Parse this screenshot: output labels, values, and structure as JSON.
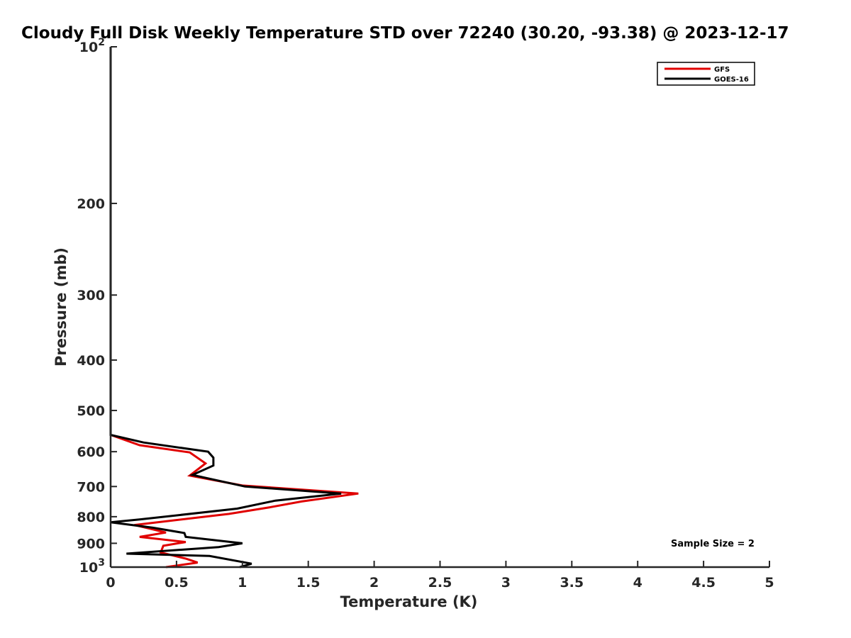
{
  "chart_data": {
    "type": "line",
    "title": "Cloudy Full Disk Weekly Temperature STD over 72240 (30.20, -93.38) @ 2023-12-17",
    "xlabel": "Temperature (K)",
    "ylabel": "Pressure (mb)",
    "xlim": [
      0,
      5
    ],
    "ylim": [
      100,
      1000
    ],
    "y_scale": "log",
    "y_reversed": true,
    "grid": false,
    "legend_position": "top-right",
    "x_ticks": [
      "0",
      "0.5",
      "1",
      "1.5",
      "2",
      "2.5",
      "3",
      "3.5",
      "4",
      "4.5",
      "5"
    ],
    "y_ticks": [
      {
        "value": 100,
        "label": "10",
        "sup": "2"
      },
      {
        "value": 200,
        "label": "200",
        "sup": ""
      },
      {
        "value": 300,
        "label": "300",
        "sup": ""
      },
      {
        "value": 400,
        "label": "400",
        "sup": ""
      },
      {
        "value": 500,
        "label": "500",
        "sup": ""
      },
      {
        "value": 600,
        "label": "600",
        "sup": ""
      },
      {
        "value": 700,
        "label": "700",
        "sup": ""
      },
      {
        "value": 800,
        "label": "800",
        "sup": ""
      },
      {
        "value": 900,
        "label": "900",
        "sup": ""
      },
      {
        "value": 1000,
        "label": "10",
        "sup": "3"
      }
    ],
    "annotation": "Sample Size = 2",
    "series": [
      {
        "name": "GFS",
        "color": "#e00000",
        "points": [
          [
            0,
            100
          ],
          [
            0,
            200
          ],
          [
            0,
            400
          ],
          [
            0,
            500
          ],
          [
            0,
            557
          ],
          [
            0.22,
            583
          ],
          [
            0.6,
            602
          ],
          [
            0.72,
            632
          ],
          [
            0.6,
            667
          ],
          [
            1.0,
            697
          ],
          [
            1.88,
            722
          ],
          [
            1.45,
            748
          ],
          [
            1.2,
            768
          ],
          [
            0.9,
            790
          ],
          [
            0.18,
            830
          ],
          [
            0.42,
            858
          ],
          [
            0.22,
            875
          ],
          [
            0.57,
            895
          ],
          [
            0.4,
            910
          ],
          [
            0.38,
            937
          ],
          [
            0.57,
            963
          ],
          [
            0.66,
            980
          ],
          [
            0.42,
            1000
          ]
        ]
      },
      {
        "name": "GOES-16",
        "color": "#000000",
        "points": [
          [
            0,
            100
          ],
          [
            0,
            200
          ],
          [
            0,
            400
          ],
          [
            0,
            500
          ],
          [
            0,
            557
          ],
          [
            0.25,
            576
          ],
          [
            0.74,
            600
          ],
          [
            0.78,
            616
          ],
          [
            0.78,
            638
          ],
          [
            0.62,
            665
          ],
          [
            1.02,
            700
          ],
          [
            1.75,
            722
          ],
          [
            1.25,
            745
          ],
          [
            0.96,
            772
          ],
          [
            0.22,
            810
          ],
          [
            0.0,
            820
          ],
          [
            0.32,
            840
          ],
          [
            0.56,
            860
          ],
          [
            0.57,
            875
          ],
          [
            1.0,
            900
          ],
          [
            0.82,
            915
          ],
          [
            0.12,
            942
          ],
          [
            0.75,
            952
          ],
          [
            1.07,
            985
          ],
          [
            0.98,
            1000
          ]
        ]
      }
    ]
  }
}
